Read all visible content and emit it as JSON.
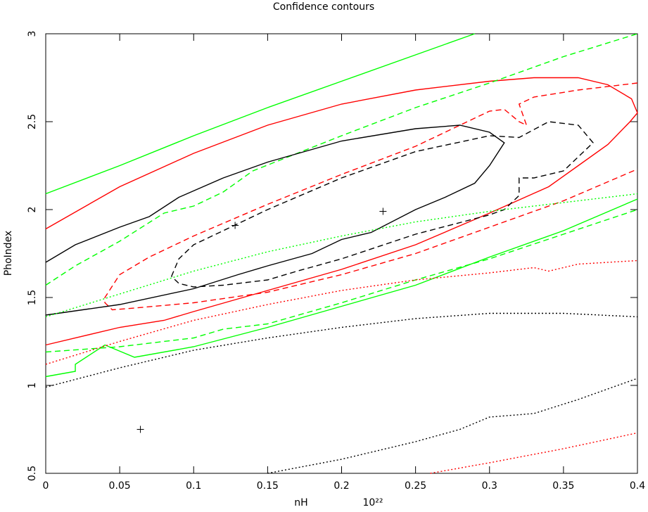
{
  "chart_data": {
    "type": "line",
    "title": "Confidence contours",
    "xlabel": "nH",
    "xunit": "10²²",
    "ylabel": "PhoIndex",
    "xlim": [
      0,
      0.4
    ],
    "ylim": [
      0.5,
      3
    ],
    "xticks": [
      0,
      0.05,
      0.1,
      0.15,
      0.2,
      0.25,
      0.3,
      0.35,
      0.4
    ],
    "yticks": [
      0.5,
      1,
      1.5,
      2,
      2.5,
      3
    ],
    "series": [
      {
        "color": "#00ff00",
        "dash": "solid",
        "x": [
          0,
          0.05,
          0.1,
          0.15,
          0.2,
          0.25,
          0.29
        ],
        "values": [
          2.09,
          2.25,
          2.42,
          2.58,
          2.73,
          2.88,
          3.0
        ]
      },
      {
        "color": "#ff0000",
        "dash": "solid",
        "x": [
          0,
          0.05,
          0.1,
          0.15,
          0.2,
          0.25,
          0.3,
          0.33,
          0.36,
          0.38,
          0.396,
          0.4,
          0.395,
          0.38,
          0.36,
          0.34,
          0.3,
          0.25,
          0.2,
          0.15,
          0.1,
          0.08,
          0.05,
          0
        ],
        "values": [
          1.89,
          2.13,
          2.32,
          2.48,
          2.6,
          2.68,
          2.73,
          2.75,
          2.75,
          2.71,
          2.63,
          2.55,
          2.5,
          2.37,
          2.25,
          2.13,
          1.98,
          1.8,
          1.66,
          1.54,
          1.42,
          1.37,
          1.33,
          1.23
        ]
      },
      {
        "color": "#ff0000",
        "dash": "dashed",
        "x": [
          0.4,
          0.36,
          0.33,
          0.32,
          0.325,
          0.32,
          0.31,
          0.3,
          0.28,
          0.25,
          0.2,
          0.15,
          0.1,
          0.07,
          0.05,
          0.04,
          0.04,
          0.045,
          0.06,
          0.1,
          0.15,
          0.2,
          0.25,
          0.3,
          0.35,
          0.4
        ],
        "values": [
          2.72,
          2.68,
          2.64,
          2.6,
          2.48,
          2.5,
          2.57,
          2.56,
          2.48,
          2.36,
          2.2,
          2.03,
          1.85,
          1.73,
          1.63,
          1.5,
          1.47,
          1.43,
          1.44,
          1.47,
          1.53,
          1.63,
          1.75,
          1.9,
          2.05,
          2.23
        ]
      },
      {
        "color": "#00ff00",
        "dash": "dashed",
        "x": [
          0,
          0.02,
          0.05,
          0.08,
          0.1,
          0.12,
          0.14,
          0.2,
          0.25,
          0.3,
          0.35,
          0.4
        ],
        "values": [
          1.57,
          1.68,
          1.82,
          1.98,
          2.02,
          2.1,
          2.22,
          2.42,
          2.58,
          2.72,
          2.87,
          3.0
        ]
      },
      {
        "color": "#00ff00",
        "dash": "dashed",
        "x": [
          0,
          0.05,
          0.1,
          0.12,
          0.15,
          0.2,
          0.25,
          0.3,
          0.35,
          0.4
        ],
        "values": [
          1.19,
          1.22,
          1.27,
          1.32,
          1.35,
          1.47,
          1.6,
          1.72,
          1.86,
          2.0
        ]
      },
      {
        "color": "#00ff00",
        "dash": "solid",
        "x": [
          0,
          0.02,
          0.02,
          0.04,
          0.06,
          0.1,
          0.15,
          0.2,
          0.25,
          0.3,
          0.35,
          0.4
        ],
        "values": [
          1.05,
          1.08,
          1.12,
          1.23,
          1.16,
          1.22,
          1.33,
          1.45,
          1.57,
          1.73,
          1.88,
          2.06
        ]
      },
      {
        "color": "#000000",
        "dash": "solid",
        "x": [
          0,
          0.02,
          0.05,
          0.07,
          0.09,
          0.12,
          0.15,
          0.2,
          0.25,
          0.28,
          0.3,
          0.31,
          0.3,
          0.29,
          0.27,
          0.25,
          0.22,
          0.2,
          0.18,
          0.15,
          0.13,
          0.1,
          0.05,
          0
        ],
        "values": [
          1.7,
          1.8,
          1.9,
          1.96,
          2.07,
          2.18,
          2.27,
          2.39,
          2.46,
          2.48,
          2.44,
          2.38,
          2.25,
          2.15,
          2.07,
          2.0,
          1.87,
          1.83,
          1.75,
          1.68,
          1.63,
          1.55,
          1.46,
          1.4
        ]
      },
      {
        "color": "#000000",
        "dash": "dashed",
        "x": [
          0.085,
          0.09,
          0.1,
          0.13,
          0.15,
          0.2,
          0.25,
          0.3,
          0.32,
          0.34,
          0.36,
          0.37,
          0.36,
          0.35,
          0.33,
          0.32,
          0.32,
          0.31,
          0.3,
          0.25,
          0.2,
          0.17,
          0.15,
          0.12,
          0.1,
          0.09,
          0.085
        ],
        "values": [
          1.62,
          1.72,
          1.8,
          1.92,
          2.0,
          2.18,
          2.33,
          2.42,
          2.41,
          2.5,
          2.48,
          2.38,
          2.3,
          2.22,
          2.18,
          2.18,
          2.08,
          2.0,
          1.97,
          1.86,
          1.72,
          1.65,
          1.6,
          1.57,
          1.56,
          1.58,
          1.62
        ]
      },
      {
        "color": "#00ff00",
        "dash": "dotted",
        "x": [
          0,
          0.05,
          0.1,
          0.15,
          0.2,
          0.25,
          0.3,
          0.35,
          0.4
        ],
        "values": [
          1.39,
          1.52,
          1.65,
          1.76,
          1.85,
          1.93,
          1.99,
          2.04,
          2.09
        ]
      },
      {
        "color": "#ff0000",
        "dash": "dotted",
        "x": [
          0,
          0.05,
          0.1,
          0.15,
          0.2,
          0.25,
          0.3,
          0.33,
          0.34,
          0.36,
          0.4
        ],
        "values": [
          1.12,
          1.25,
          1.37,
          1.46,
          1.54,
          1.6,
          1.64,
          1.67,
          1.65,
          1.69,
          1.71
        ]
      },
      {
        "color": "#ff0000",
        "dash": "dotted",
        "x": [
          0.26,
          0.3,
          0.35,
          0.4
        ],
        "values": [
          0.5,
          0.56,
          0.64,
          0.73
        ]
      },
      {
        "color": "#000000",
        "dash": "dotted",
        "x": [
          0,
          0.05,
          0.1,
          0.15,
          0.2,
          0.25,
          0.3,
          0.35,
          0.4
        ],
        "values": [
          0.99,
          1.1,
          1.2,
          1.27,
          1.33,
          1.38,
          1.41,
          1.41,
          1.39
        ]
      },
      {
        "color": "#000000",
        "dash": "dotted",
        "x": [
          0.15,
          0.2,
          0.25,
          0.28,
          0.3,
          0.33,
          0.36,
          0.4
        ],
        "values": [
          0.5,
          0.58,
          0.68,
          0.75,
          0.82,
          0.84,
          0.92,
          1.04
        ]
      }
    ],
    "markers": {
      "color": "#000000",
      "x": [
        0.128,
        0.228,
        0.064
      ],
      "values": [
        1.91,
        1.99,
        0.75
      ]
    }
  }
}
